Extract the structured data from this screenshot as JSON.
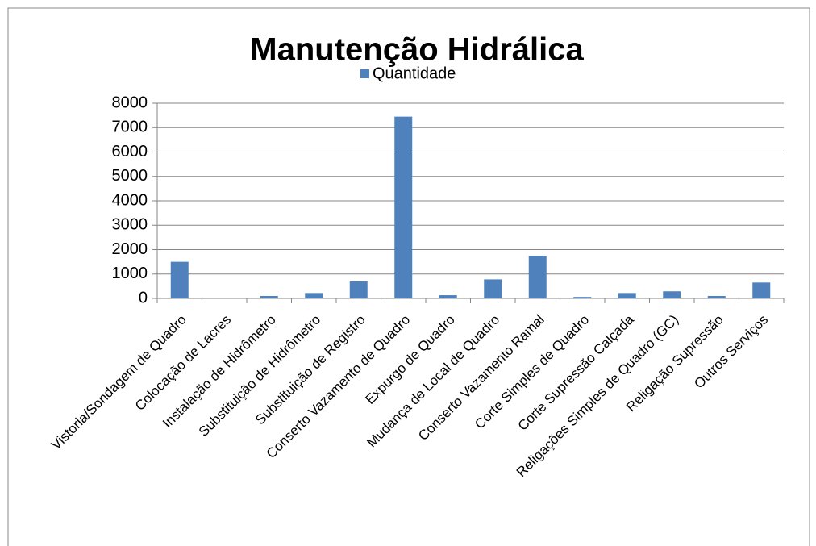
{
  "chart_data": {
    "type": "bar",
    "title": "Manutenção Hidrálica",
    "categories": [
      "Vistoria/Sondagem de Quadro",
      "Colocação de Lacres",
      "Instalação de Hidrômetro",
      "Substituição de Hidrômetro",
      "Substituição de Registro",
      "Conserto Vazamento de Quadro",
      "Expurgo de Quadro",
      "Mudança de Local de Quadro",
      "Conserto Vazamento Ramal",
      "Corte Simples de Quadro",
      "Corte Supressão Calçada",
      "Religações Simples de Quadro (GC)",
      "Religação Supressão",
      "Outros Serviços"
    ],
    "series": [
      {
        "name": "Quantidade",
        "color": "#4f81bd",
        "values": [
          1500,
          0,
          100,
          220,
          700,
          7450,
          130,
          780,
          1750,
          60,
          220,
          290,
          100,
          650
        ]
      }
    ],
    "ylim": [
      0,
      8000
    ],
    "yticks": [
      0,
      1000,
      2000,
      3000,
      4000,
      5000,
      6000,
      7000,
      8000
    ],
    "grid": true,
    "legend": "top"
  }
}
